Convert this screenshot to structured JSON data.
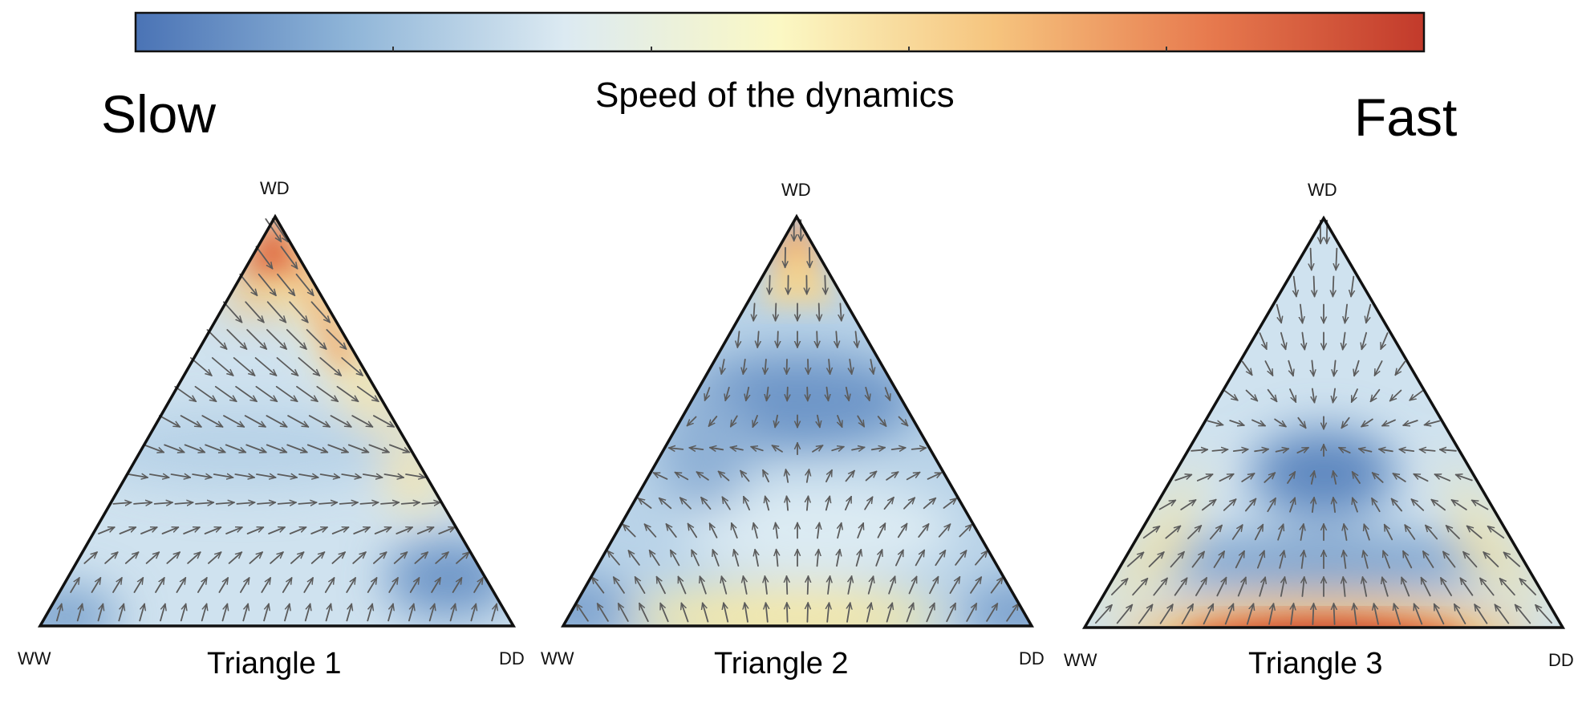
{
  "colorbar": {
    "title": "Speed of the dynamics",
    "low_label": "Slow",
    "high_label": "Fast",
    "colors": [
      "#4a73b5",
      "#8fb5d8",
      "#dceaf2",
      "#fbf8c4",
      "#f6c47e",
      "#e77a4e",
      "#c23a2b"
    ]
  },
  "arrow_color": "#5b5b5b",
  "triangles": [
    {
      "title": "Triangle 1",
      "vertices": {
        "top": "WD",
        "left": "WW",
        "right": "DD"
      }
    },
    {
      "title": "Triangle 2",
      "vertices": {
        "top": "WD",
        "left": "WW",
        "right": "DD"
      }
    },
    {
      "title": "Triangle 3",
      "vertices": {
        "top": "WD",
        "left": "WW",
        "right": "DD"
      }
    }
  ]
}
